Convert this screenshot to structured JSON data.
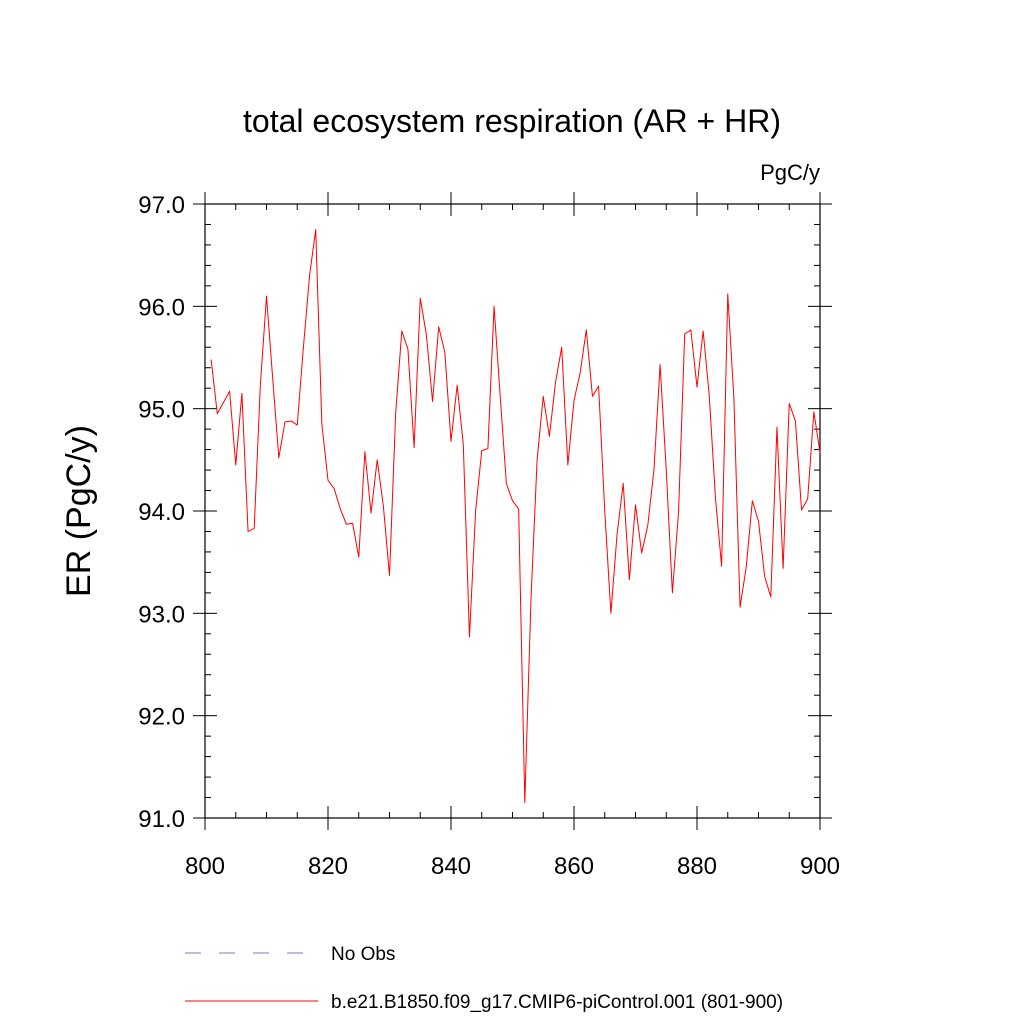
{
  "chart_data": {
    "type": "line",
    "title": "total ecosystem respiration (AR + HR)",
    "units": "PgC/y",
    "ylabel": "ER  (PgC/y)",
    "xlabel": "",
    "xlim": [
      800,
      900
    ],
    "ylim": [
      91.0,
      97.0
    ],
    "x_ticks": [
      800,
      820,
      840,
      860,
      880,
      900
    ],
    "x_tick_labels": [
      "800",
      "820",
      "840",
      "860",
      "880",
      "900"
    ],
    "y_ticks": [
      91.0,
      92.0,
      93.0,
      94.0,
      95.0,
      96.0,
      97.0
    ],
    "y_tick_labels": [
      "91.0",
      "92.0",
      "93.0",
      "94.0",
      "95.0",
      "96.0",
      "97.0"
    ],
    "grid": false,
    "legend_position": "bottom",
    "series": [
      {
        "name": "No Obs",
        "style": "dashed",
        "color": "#7b7bc8",
        "x": [],
        "y": []
      },
      {
        "name": "b.e21.B1850.f09_g17.CMIP6-piControl.001 (801-900)",
        "style": "solid",
        "color": "#ff0000",
        "x": [
          801,
          802,
          803,
          804,
          805,
          806,
          807,
          808,
          809,
          810,
          811,
          812,
          813,
          814,
          815,
          816,
          817,
          818,
          819,
          820,
          821,
          822,
          823,
          824,
          825,
          826,
          827,
          828,
          829,
          830,
          831,
          832,
          833,
          834,
          835,
          836,
          837,
          838,
          839,
          840,
          841,
          842,
          843,
          844,
          845,
          846,
          847,
          848,
          849,
          850,
          851,
          852,
          853,
          854,
          855,
          856,
          857,
          858,
          859,
          860,
          861,
          862,
          863,
          864,
          865,
          866,
          867,
          868,
          869,
          870,
          871,
          872,
          873,
          874,
          875,
          876,
          877,
          878,
          879,
          880,
          881,
          882,
          883,
          884,
          885,
          886,
          887,
          888,
          889,
          890,
          891,
          892,
          893,
          894,
          895,
          896,
          897,
          898,
          899,
          900
        ],
        "y": [
          95.48,
          94.95,
          95.06,
          95.17,
          94.45,
          95.15,
          93.8,
          93.83,
          95.23,
          96.1,
          95.3,
          94.52,
          94.87,
          94.88,
          94.84,
          95.6,
          96.3,
          96.75,
          94.85,
          94.3,
          94.22,
          94.02,
          93.87,
          93.88,
          93.55,
          94.58,
          93.98,
          94.5,
          94.05,
          93.37,
          94.95,
          95.76,
          95.58,
          94.62,
          96.08,
          95.72,
          95.07,
          95.8,
          95.55,
          94.68,
          95.23,
          94.65,
          92.77,
          94.0,
          94.59,
          94.61,
          96.0,
          95.12,
          94.27,
          94.1,
          94.02,
          91.15,
          93.13,
          94.5,
          95.12,
          94.73,
          95.26,
          95.6,
          94.45,
          95.08,
          95.35,
          95.77,
          95.12,
          95.22,
          94.0,
          93.0,
          93.77,
          94.27,
          93.33,
          94.06,
          93.59,
          93.86,
          94.4,
          95.43,
          94.4,
          93.2,
          93.99,
          95.73,
          95.77,
          95.21,
          95.76,
          95.12,
          94.13,
          93.46,
          96.12,
          95.1,
          93.06,
          93.45,
          94.1,
          93.9,
          93.36,
          93.16,
          94.82,
          93.44,
          95.05,
          94.88,
          94.01,
          94.12,
          94.97,
          94.57
        ]
      }
    ]
  }
}
